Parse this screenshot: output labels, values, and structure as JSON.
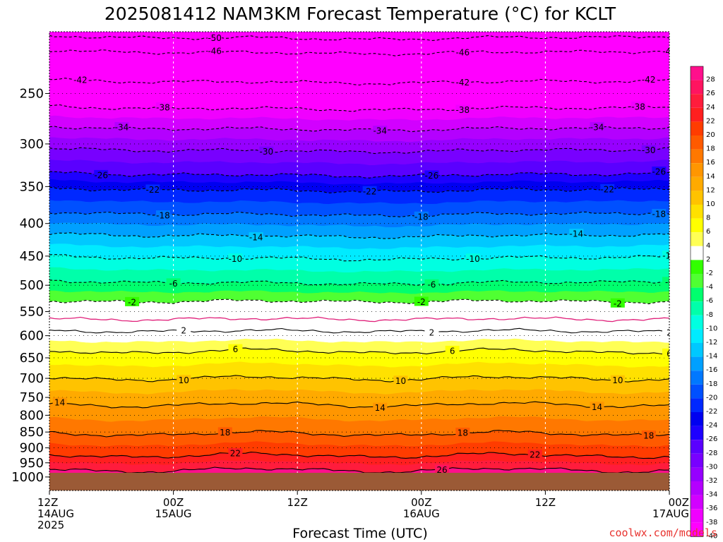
{
  "chart_data": {
    "type": "heatmap",
    "title": "2025081412 NAM3KM Forecast Temperature (°C) for KCLT",
    "xlabel": "Forecast Time (UTC)",
    "ylabel": "",
    "x_ticks": [
      {
        "label": "12Z",
        "date": "14AUG",
        "year": "2025",
        "hour": 0
      },
      {
        "label": "00Z",
        "date": "15AUG",
        "year": "",
        "hour": 12
      },
      {
        "label": "12Z",
        "date": "",
        "year": "",
        "hour": 24
      },
      {
        "label": "00Z",
        "date": "16AUG",
        "year": "",
        "hour": 36
      },
      {
        "label": "12Z",
        "date": "",
        "year": "",
        "hour": 48
      },
      {
        "label": "00Z",
        "date": "17AUG",
        "year": "",
        "hour": 60
      }
    ],
    "xlim": [
      0,
      60
    ],
    "y_ticks": [
      250,
      300,
      350,
      400,
      450,
      500,
      550,
      600,
      650,
      700,
      750,
      800,
      850,
      900,
      950,
      1000
    ],
    "ylim_hpa": [
      200,
      1050
    ],
    "y_scale": "log-pressure",
    "colorbar": {
      "labels": [
        28,
        26,
        24,
        22,
        20,
        18,
        16,
        14,
        12,
        10,
        8,
        6,
        4,
        2,
        -2,
        -4,
        -6,
        -8,
        -10,
        -12,
        -14,
        -16,
        -18,
        -20,
        -22,
        -24,
        -26,
        -28,
        -30,
        -32,
        -34,
        -36,
        -38,
        -40
      ],
      "colors": [
        "#ff0f8c",
        "#ff1460",
        "#ff1c3c",
        "#ff1f1f",
        "#ff3c00",
        "#ff5a00",
        "#ff7800",
        "#ff9600",
        "#ffaa00",
        "#ffc300",
        "#ffe100",
        "#ffff00",
        "#ffff55",
        "#ffffff",
        "#32ff00",
        "#50ff32",
        "#00ff6e",
        "#00ffaa",
        "#00ffe1",
        "#00ebff",
        "#00c8ff",
        "#00a0ff",
        "#0078ff",
        "#0050ff",
        "#0028ff",
        "#0000f0",
        "#1e00ff",
        "#5a00ff",
        "#7800ff",
        "#9600ff",
        "#b400ff",
        "#d200ff",
        "#f000ff",
        "#ff00ff"
      ]
    },
    "contours": [
      {
        "value": -50,
        "p": 203,
        "labels_at": [
          16
        ]
      },
      {
        "value": -46,
        "p": 214,
        "labels_at": [
          16,
          40,
          60
        ]
      },
      {
        "value": -42,
        "p": 238,
        "labels_at": [
          3,
          40,
          58
        ]
      },
      {
        "value": -38,
        "p": 262,
        "labels_at": [
          11,
          40,
          57
        ]
      },
      {
        "value": -34,
        "p": 282,
        "labels_at": [
          7,
          32,
          53
        ]
      },
      {
        "value": -30,
        "p": 305,
        "labels_at": [
          21,
          58
        ]
      },
      {
        "value": -26,
        "p": 333,
        "labels_at": [
          5,
          37,
          59
        ]
      },
      {
        "value": -22,
        "p": 352,
        "labels_at": [
          10,
          31,
          54
        ]
      },
      {
        "value": -18,
        "p": 384,
        "labels_at": [
          11,
          36,
          59
        ]
      },
      {
        "value": -14,
        "p": 415,
        "labels_at": [
          20,
          51
        ]
      },
      {
        "value": -10,
        "p": 450,
        "labels_at": [
          18,
          41,
          60
        ]
      },
      {
        "value": -6,
        "p": 492,
        "labels_at": [
          12,
          37,
          60
        ]
      },
      {
        "value": -2,
        "p": 530,
        "labels_at": [
          8,
          36,
          55
        ]
      },
      {
        "value": 0,
        "p": 565,
        "labels_at": []
      },
      {
        "value": 2,
        "p": 590,
        "labels_at": [
          13,
          37,
          60
        ]
      },
      {
        "value": 6,
        "p": 635,
        "labels_at": [
          18,
          39,
          60
        ]
      },
      {
        "value": 10,
        "p": 700,
        "labels_at": [
          13,
          34,
          55
        ]
      },
      {
        "value": 14,
        "p": 770,
        "labels_at": [
          1,
          32,
          53
        ]
      },
      {
        "value": 18,
        "p": 855,
        "labels_at": [
          17,
          40,
          58
        ]
      },
      {
        "value": 22,
        "p": 925,
        "labels_at": [
          18,
          47
        ]
      },
      {
        "value": 26,
        "p": 975,
        "labels_at": [
          38
        ]
      }
    ],
    "surface_hpa": 985
  },
  "credit": "coolwx.com/models"
}
